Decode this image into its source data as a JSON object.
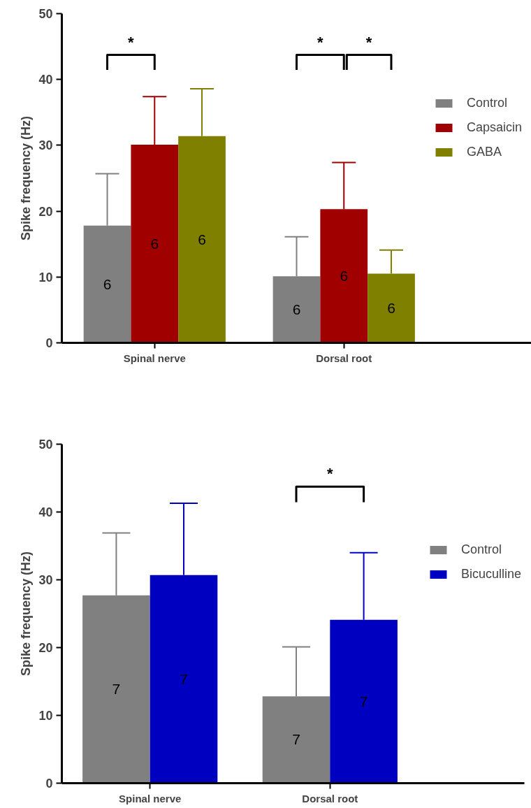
{
  "chart_data": [
    {
      "type": "bar",
      "categories": [
        "Spinal nerve",
        "Dorsal root"
      ],
      "ylabel": "Spike frequency (Hz)",
      "ylim": [
        0,
        50
      ],
      "yticks": [
        0,
        10,
        20,
        30,
        40,
        50
      ],
      "grid": false,
      "legend": "right",
      "series": [
        {
          "name": "Control",
          "color": "#808080",
          "values": [
            17.8,
            10.1
          ],
          "errors": [
            [
              17.8,
              25.7
            ],
            [
              10.1,
              16.1
            ]
          ]
        },
        {
          "name": "Capsaicin",
          "color": "#a00000",
          "values": [
            30.1,
            20.3
          ],
          "errors": [
            [
              30.1,
              37.4
            ],
            [
              20.3,
              27.4
            ]
          ]
        },
        {
          "name": "GABA",
          "color": "#808000",
          "values": [
            31.4,
            10.5
          ],
          "errors": [
            [
              31.4,
              38.6
            ],
            [
              10.5,
              14.1
            ]
          ]
        }
      ],
      "annotations": [
        "6",
        "6",
        "6",
        "6",
        "6",
        "6",
        "*",
        "*",
        "*"
      ]
    },
    {
      "type": "bar",
      "categories": [
        "Spinal nerve",
        "Dorsal root"
      ],
      "ylabel": "Spike frequency (Hz)",
      "ylim": [
        0,
        50
      ],
      "yticks": [
        0,
        10,
        20,
        30,
        40,
        50
      ],
      "grid": false,
      "legend": "right",
      "series": [
        {
          "name": "Control",
          "color": "#808080",
          "values": [
            27.7,
            12.8
          ],
          "errors": [
            [
              27.7,
              36.9
            ],
            [
              12.8,
              20.1
            ]
          ]
        },
        {
          "name": "Bicuculline",
          "color": "#0000c0",
          "values": [
            30.7,
            24.1
          ],
          "errors": [
            [
              30.7,
              41.3
            ],
            [
              24.1,
              34.0
            ]
          ]
        }
      ],
      "annotations": [
        "7",
        "7",
        "7",
        "7",
        "*"
      ]
    }
  ]
}
